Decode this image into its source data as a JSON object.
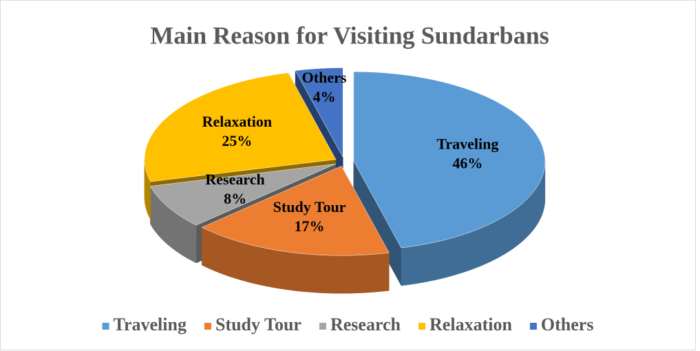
{
  "chart_data": {
    "type": "pie",
    "title": "Main Reason for Visiting Sundarbans",
    "categories": [
      "Traveling",
      "Study Tour",
      "Research",
      "Relaxation",
      "Others"
    ],
    "values": [
      46,
      17,
      8,
      25,
      4
    ],
    "value_labels": [
      "46%",
      "17%",
      "8%",
      "25%",
      "4%"
    ],
    "colors": [
      "#5b9bd5",
      "#ed7d31",
      "#a5a5a5",
      "#ffc000",
      "#4472c4"
    ],
    "legend": "bottom"
  }
}
